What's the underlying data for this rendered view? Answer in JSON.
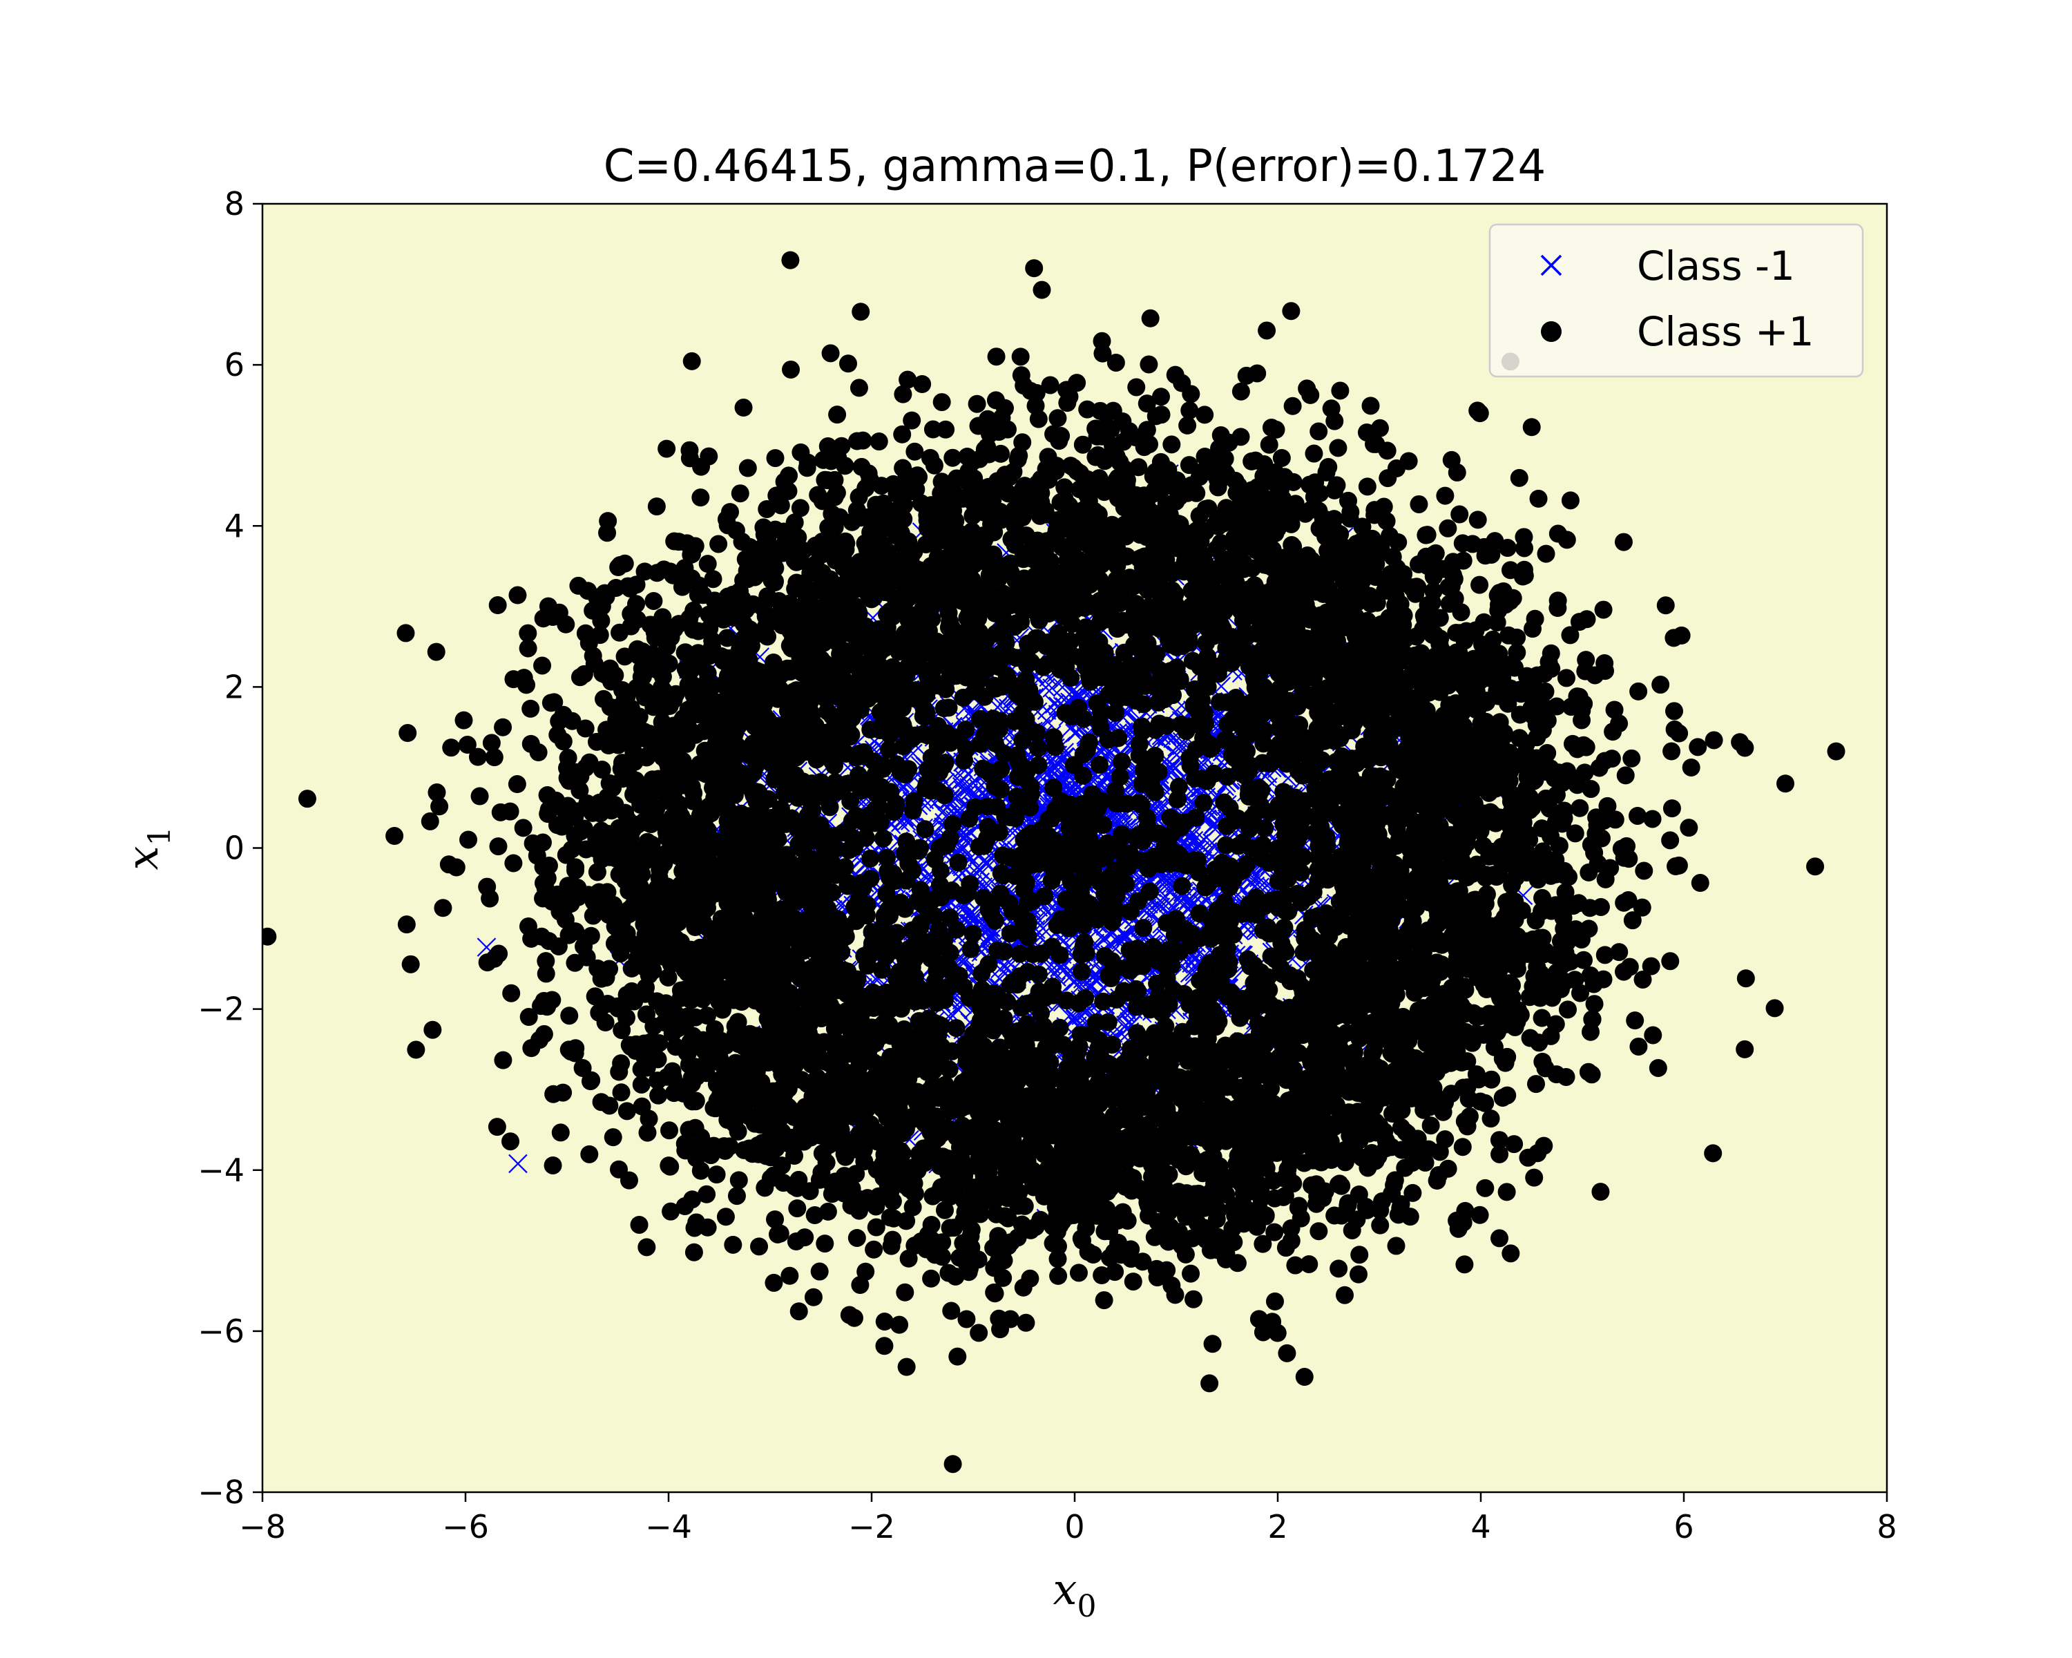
{
  "chart_data": {
    "type": "scatter",
    "title": "C=0.46415, gamma=0.1, P(error)=0.1724",
    "xlabel": "x",
    "xlabel_sub": "0",
    "ylabel": "x",
    "ylabel_sub": "1",
    "xlim": [
      -8,
      8
    ],
    "ylim": [
      -8,
      8
    ],
    "xticks": [
      -8,
      -6,
      -4,
      -2,
      0,
      2,
      4,
      6,
      8
    ],
    "yticks": [
      -8,
      -6,
      -4,
      -2,
      0,
      2,
      4,
      6,
      8
    ],
    "xtick_labels": [
      "−8",
      "−6",
      "−4",
      "−2",
      "0",
      "2",
      "4",
      "6",
      "8"
    ],
    "ytick_labels": [
      "−8",
      "−6",
      "−4",
      "−2",
      "0",
      "2",
      "4",
      "6",
      "8"
    ],
    "grid": false,
    "background_color": "#f5f8d0",
    "legend_position": "top-right",
    "series": [
      {
        "name": "Class -1",
        "marker": "x",
        "color": "#0000ff",
        "distribution": "gaussian",
        "center": [
          0,
          0
        ],
        "std": 1.4,
        "count": 2500
      },
      {
        "name": "Class +1",
        "marker": "o",
        "color": "#000000",
        "distribution": "ring",
        "center": [
          0,
          0
        ],
        "radius": 3.8,
        "radial_std": 1.0,
        "count": 7500
      }
    ],
    "notable_points": [
      {
        "x": -7.95,
        "y": -1.1
      },
      {
        "x": 7.5,
        "y": 1.2
      },
      {
        "x": -2.8,
        "y": 7.3
      },
      {
        "x": -0.4,
        "y": 7.2
      },
      {
        "x": -1.2,
        "y": -7.65
      },
      {
        "x": 6.6,
        "y": -2.5
      },
      {
        "x": 7.0,
        "y": 0.8
      },
      {
        "x": -6.7,
        "y": 0.15
      }
    ]
  }
}
